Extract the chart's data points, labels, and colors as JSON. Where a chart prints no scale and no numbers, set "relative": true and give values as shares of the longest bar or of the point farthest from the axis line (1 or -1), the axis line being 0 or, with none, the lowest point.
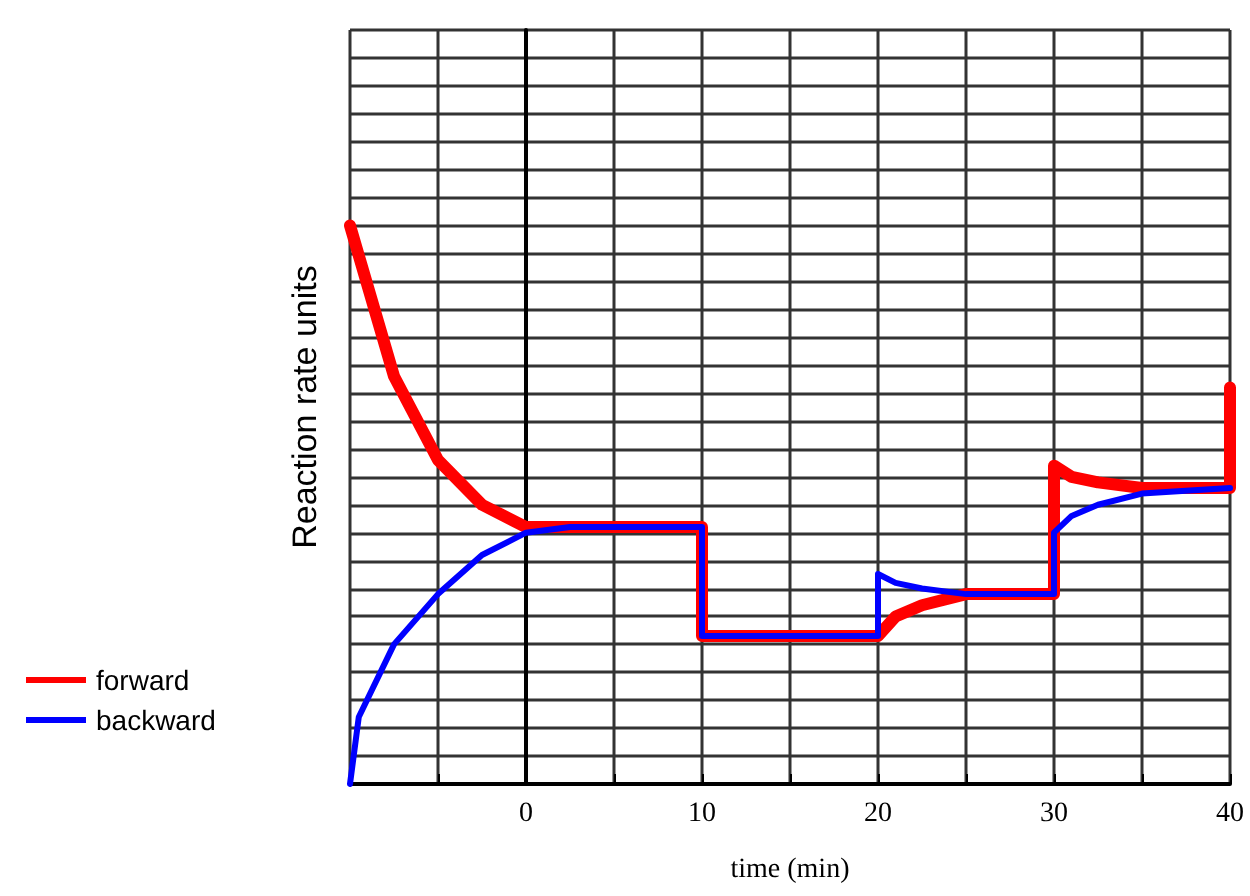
{
  "chart_data": {
    "type": "line",
    "relative": true,
    "xlabel": "time (min)",
    "ylabel": "Reaction rate units",
    "xlim": [
      -10,
      40
    ],
    "xticks": [
      {
        "value": -10,
        "label": null
      },
      {
        "value": -5,
        "label": null
      },
      0,
      {
        "value": 5,
        "label": null
      },
      10,
      {
        "value": 15,
        "label": null
      },
      20,
      {
        "value": 25,
        "label": null
      },
      30,
      {
        "value": 35,
        "label": null
      },
      40
    ],
    "grid": true,
    "legend": "bottom left",
    "marker": "none",
    "line_style": "solid",
    "series": [
      {
        "name": "forward",
        "color": "#ff0000",
        "x": [
          -10,
          -7.5,
          -5,
          -2.5,
          0,
          2.5,
          10,
          10,
          15,
          20,
          21,
          22.5,
          25,
          30,
          30,
          31,
          32.5,
          35,
          40,
          40
        ],
        "values": [
          1,
          0.73,
          0.58,
          0.5,
          0.46,
          0.46,
          0.46,
          0.265,
          0.265,
          0.265,
          0.3,
          0.32,
          0.34,
          0.34,
          0.57,
          0.55,
          0.54,
          0.53,
          0.53,
          0.71
        ]
      },
      {
        "name": "backward",
        "color": "#0000ff",
        "x": [
          -10,
          -9.5,
          -7.5,
          -5,
          -2.5,
          0,
          2.5,
          10,
          10,
          15,
          20,
          20,
          21,
          22.5,
          25,
          30,
          30,
          31,
          32.5,
          35,
          40
        ],
        "values": [
          0,
          0.12,
          0.25,
          0.34,
          0.41,
          0.45,
          0.46,
          0.46,
          0.265,
          0.265,
          0.265,
          0.376,
          0.36,
          0.35,
          0.34,
          0.34,
          0.45,
          0.48,
          0.5,
          0.52,
          0.53
        ]
      }
    ]
  }
}
